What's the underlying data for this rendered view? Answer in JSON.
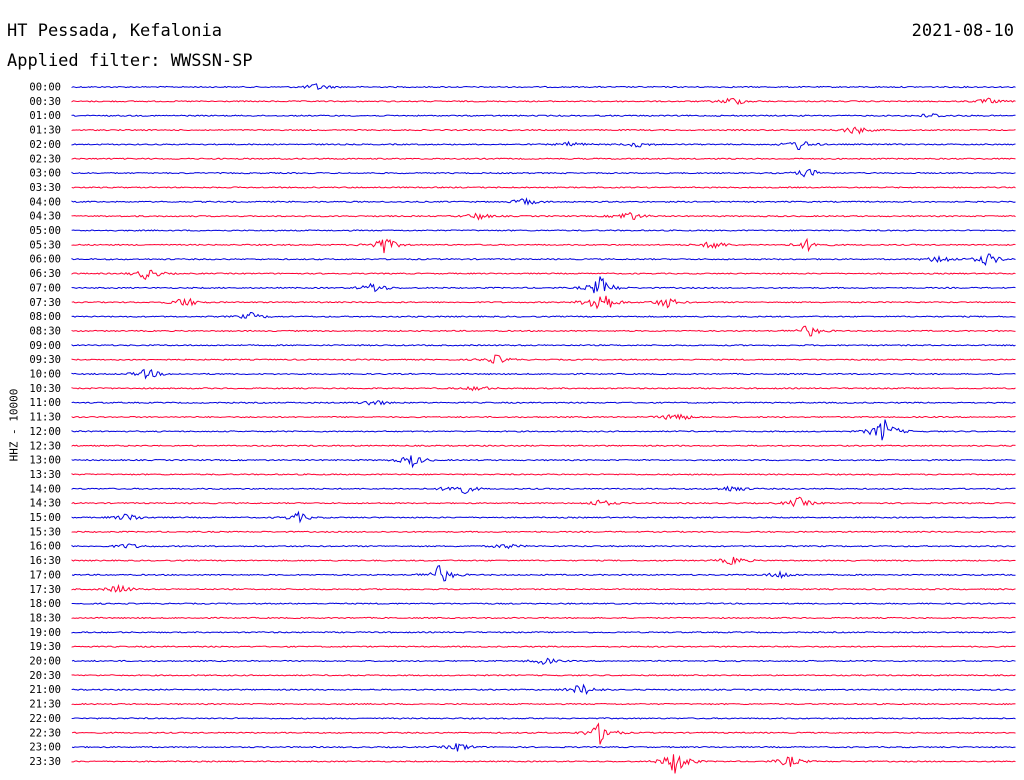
{
  "header": {
    "station": "HT Pessada, Kefalonia",
    "date": "2021-08-10",
    "filter": "Applied filter: WWSSN-SP"
  },
  "channel_label": "HHZ - 10000",
  "colors": {
    "even_row": "#0000dd",
    "odd_row": "#ff0033"
  },
  "rows": [
    {
      "time": "00:00",
      "events": [
        [
          0.26,
          4
        ]
      ]
    },
    {
      "time": "00:30",
      "events": [
        [
          0.7,
          5
        ],
        [
          0.97,
          3
        ]
      ]
    },
    {
      "time": "01:00",
      "events": [
        [
          0.91,
          3
        ]
      ]
    },
    {
      "time": "01:30",
      "events": [
        [
          0.83,
          5
        ]
      ]
    },
    {
      "time": "02:00",
      "events": [
        [
          0.53,
          3
        ],
        [
          0.6,
          3
        ],
        [
          0.77,
          6
        ]
      ]
    },
    {
      "time": "02:30",
      "events": []
    },
    {
      "time": "03:00",
      "events": [
        [
          0.78,
          5
        ]
      ]
    },
    {
      "time": "03:30",
      "events": []
    },
    {
      "time": "04:00",
      "events": [
        [
          0.48,
          4
        ]
      ]
    },
    {
      "time": "04:30",
      "events": [
        [
          0.59,
          6
        ],
        [
          0.43,
          4
        ]
      ]
    },
    {
      "time": "05:00",
      "events": []
    },
    {
      "time": "05:30",
      "events": [
        [
          0.33,
          10
        ],
        [
          0.78,
          6
        ],
        [
          0.68,
          5
        ]
      ]
    },
    {
      "time": "06:00",
      "events": [
        [
          0.97,
          7
        ],
        [
          0.92,
          5
        ]
      ]
    },
    {
      "time": "06:30",
      "events": [
        [
          0.08,
          7
        ]
      ]
    },
    {
      "time": "07:00",
      "events": [
        [
          0.32,
          6
        ],
        [
          0.56,
          12
        ]
      ]
    },
    {
      "time": "07:30",
      "events": [
        [
          0.56,
          17
        ],
        [
          0.63,
          6
        ],
        [
          0.12,
          6
        ]
      ]
    },
    {
      "time": "08:00",
      "events": [
        [
          0.19,
          4
        ]
      ]
    },
    {
      "time": "08:30",
      "events": [
        [
          0.78,
          7
        ]
      ]
    },
    {
      "time": "09:00",
      "events": []
    },
    {
      "time": "09:30",
      "events": [
        [
          0.45,
          5
        ]
      ]
    },
    {
      "time": "10:00",
      "events": [
        [
          0.08,
          6
        ]
      ]
    },
    {
      "time": "10:30",
      "events": [
        [
          0.43,
          3
        ]
      ]
    },
    {
      "time": "11:00",
      "events": [
        [
          0.32,
          4
        ]
      ]
    },
    {
      "time": "11:30",
      "events": [
        [
          0.64,
          6
        ]
      ]
    },
    {
      "time": "12:00",
      "events": [
        [
          0.86,
          14
        ]
      ]
    },
    {
      "time": "12:30",
      "events": []
    },
    {
      "time": "13:00",
      "events": [
        [
          0.36,
          7
        ]
      ]
    },
    {
      "time": "13:30",
      "events": []
    },
    {
      "time": "14:00",
      "events": [
        [
          0.41,
          9
        ],
        [
          0.7,
          4
        ]
      ]
    },
    {
      "time": "14:30",
      "events": [
        [
          0.77,
          6
        ],
        [
          0.56,
          4
        ]
      ]
    },
    {
      "time": "15:00",
      "events": [
        [
          0.06,
          5
        ],
        [
          0.24,
          5
        ]
      ]
    },
    {
      "time": "15:30",
      "events": []
    },
    {
      "time": "16:00",
      "events": [
        [
          0.06,
          3
        ],
        [
          0.46,
          3
        ]
      ]
    },
    {
      "time": "16:30",
      "events": [
        [
          0.7,
          5
        ]
      ]
    },
    {
      "time": "17:00",
      "events": [
        [
          0.39,
          11
        ],
        [
          0.75,
          4
        ]
      ]
    },
    {
      "time": "17:30",
      "events": [
        [
          0.05,
          5
        ]
      ]
    },
    {
      "time": "18:00",
      "events": []
    },
    {
      "time": "18:30",
      "events": []
    },
    {
      "time": "19:00",
      "events": []
    },
    {
      "time": "19:30",
      "events": []
    },
    {
      "time": "20:00",
      "events": [
        [
          0.5,
          4
        ]
      ]
    },
    {
      "time": "20:30",
      "events": []
    },
    {
      "time": "21:00",
      "events": [
        [
          0.54,
          7
        ]
      ]
    },
    {
      "time": "21:30",
      "events": []
    },
    {
      "time": "22:00",
      "events": []
    },
    {
      "time": "22:30",
      "events": [
        [
          0.56,
          12
        ]
      ]
    },
    {
      "time": "23:00",
      "events": [
        [
          0.41,
          5
        ]
      ]
    },
    {
      "time": "23:30",
      "events": [
        [
          0.64,
          15
        ],
        [
          0.76,
          6
        ]
      ]
    }
  ]
}
